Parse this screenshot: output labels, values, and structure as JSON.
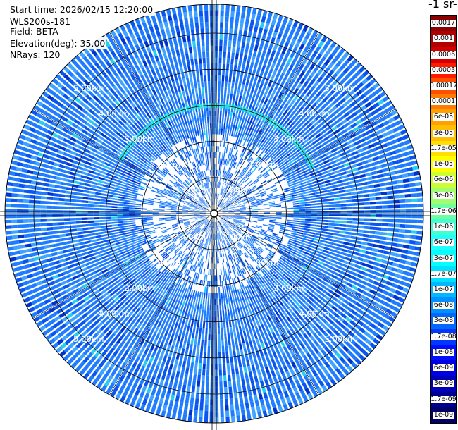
{
  "header": {
    "start_time": "Start time: 2026/02/15 12:20:00",
    "instrument": "WLS200s-181",
    "field": "Field: BETA",
    "elevation": "Elevation(deg): 35.00",
    "nrays": "NRays: 120"
  },
  "chart_data": {
    "type": "ppi-polar",
    "field": "BETA",
    "nrays": 120,
    "elevation_deg": 35.0,
    "range_rings_km": [
      1,
      2,
      3,
      4,
      5
    ],
    "range_labels": [
      "1.00km",
      "2.00km",
      "3.00km",
      "4.00km",
      "5.00km"
    ],
    "max_range_km": 5.8,
    "colorbar": {
      "title": "-1 sr-",
      "labels": [
        "0.0017",
        "0.001",
        "0.0006",
        "0.0003",
        "0.00017",
        "0.0001",
        "6e-05",
        "3e-05",
        "1.7e-05",
        "1e-05",
        "6e-06",
        "3e-06",
        "1.7e-06",
        "1e-06",
        "6e-07",
        "3e-07",
        "1.7e-07",
        "1e-07",
        "6e-08",
        "3e-08",
        "1.7e-08",
        "1e-08",
        "6e-09",
        "3e-09",
        "1.7e-09",
        "1e-09"
      ],
      "colors": [
        "#8b0000",
        "#b00000",
        "#d40000",
        "#ff1a00",
        "#ff5000",
        "#ff7a00",
        "#ff9f00",
        "#ffbf00",
        "#ffe000",
        "#ffff00",
        "#ccff33",
        "#a0ff70",
        "#70ffa0",
        "#40ffd0",
        "#20ffff",
        "#00ffff",
        "#00e0ff",
        "#00b8ff",
        "#0090ff",
        "#0068ff",
        "#0038ff",
        "#0010ff",
        "#0000e0",
        "#0000b8",
        "#000090",
        "#000068"
      ]
    },
    "aerosol_arc": {
      "range_km": 3.0,
      "azimuth_from_deg": 300,
      "azimuth_to_deg": 65,
      "color": "#20e8d8"
    },
    "background_colors": [
      "#1f7cff",
      "#0a55ee",
      "#3fa3ff",
      "#25d0ee",
      "#0033cc"
    ]
  }
}
